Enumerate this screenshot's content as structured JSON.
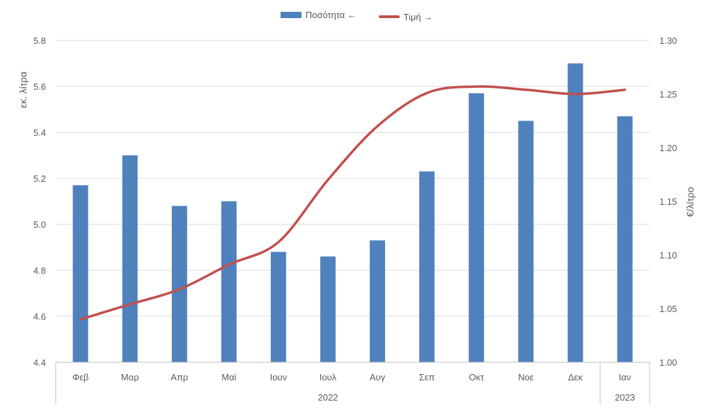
{
  "colors": {
    "bars": "#4f81bd",
    "line": "#c0504d",
    "grid": "#d9d9d9",
    "axis": "#bfbfbf"
  },
  "chart_data": {
    "type": "bar",
    "categories": [
      "Φεβ",
      "Μαρ",
      "Απρ",
      "Μαϊ",
      "Ιουν",
      "Ιουλ",
      "Αυγ",
      "Σεπ",
      "Οκτ",
      "Νοε",
      "Δεκ",
      "Ιαν"
    ],
    "year_groups": [
      {
        "label": "2022",
        "span": 11
      },
      {
        "label": "2023",
        "span": 1
      }
    ],
    "series": [
      {
        "name": "Ποσότητα ←",
        "type": "bar",
        "axis": "left",
        "values": [
          5.17,
          5.3,
          5.08,
          5.1,
          4.88,
          4.86,
          4.93,
          5.23,
          5.57,
          5.45,
          5.7,
          5.47
        ]
      },
      {
        "name": "Τιμή →",
        "type": "line",
        "axis": "right",
        "values": [
          1.04,
          1.054,
          1.068,
          1.091,
          1.112,
          1.17,
          1.22,
          1.251,
          1.257,
          1.254,
          1.25,
          1.254
        ]
      }
    ],
    "y_left": {
      "label": "εκ. λίτρα",
      "min": 4.4,
      "max": 5.8,
      "ticks": [
        "4.4",
        "4.6",
        "4.8",
        "5.0",
        "5.2",
        "5.4",
        "5.6",
        "5.8"
      ]
    },
    "y_right": {
      "label": "€/λίτρο",
      "min": 1.0,
      "max": 1.3,
      "ticks": [
        "1.00",
        "1.05",
        "1.10",
        "1.15",
        "1.20",
        "1.25",
        "1.30"
      ]
    },
    "grid": true,
    "legend_position": "top-center"
  }
}
